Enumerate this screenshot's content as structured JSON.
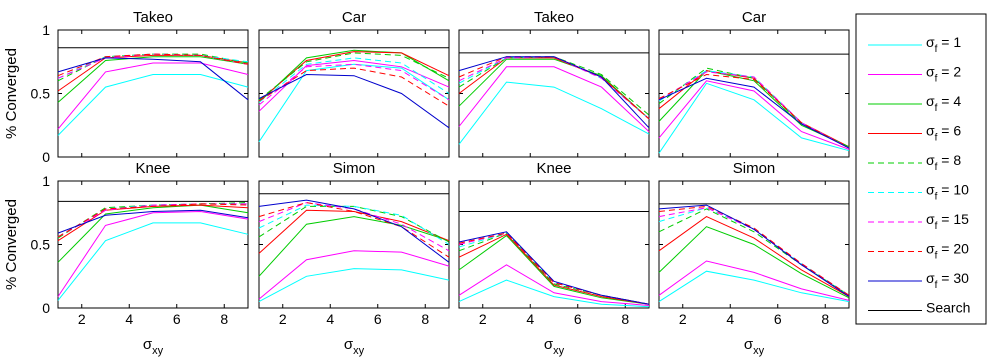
{
  "chart_data": {
    "type": "line",
    "ylabel": "% Converged",
    "xlabel_main": "σ",
    "xlabel_sub": "xy",
    "x": [
      1,
      3,
      5,
      7,
      9
    ],
    "xticks": [
      2,
      4,
      6,
      8
    ],
    "xlim": [
      1,
      9
    ],
    "yticks": [
      "0",
      "0.5",
      "1"
    ],
    "ylim": [
      0,
      1
    ],
    "legend": {
      "placement": "right",
      "entries": [
        {
          "main": "σ",
          "sub": "f",
          "suffix": " = 1",
          "color": "#00ffff",
          "dash": "solid"
        },
        {
          "main": "σ",
          "sub": "f",
          "suffix": " = 2",
          "color": "#ff00ff",
          "dash": "solid"
        },
        {
          "main": "σ",
          "sub": "f",
          "suffix": " = 4",
          "color": "#00cc00",
          "dash": "solid"
        },
        {
          "main": "σ",
          "sub": "f",
          "suffix": " = 6",
          "color": "#ff0000",
          "dash": "solid"
        },
        {
          "main": "σ",
          "sub": "f",
          "suffix": " = 8",
          "color": "#00cc00",
          "dash": "dashed"
        },
        {
          "main": "σ",
          "sub": "f",
          "suffix": " = 10",
          "color": "#00ffff",
          "dash": "dashed"
        },
        {
          "main": "σ",
          "sub": "f",
          "suffix": " = 15",
          "color": "#ff00ff",
          "dash": "dashed"
        },
        {
          "main": "σ",
          "sub": "f",
          "suffix": " = 20",
          "color": "#ff0000",
          "dash": "dashed"
        },
        {
          "main": "σ",
          "sub": "f",
          "suffix": " = 30",
          "color": "#0000cc",
          "dash": "solid"
        },
        {
          "main": "",
          "sub": "",
          "suffix": "Search",
          "color": "#000000",
          "dash": "solid"
        }
      ]
    },
    "panels": [
      {
        "title": "Takeo",
        "search": 0.86,
        "series": [
          [
            0.17,
            0.55,
            0.65,
            0.65,
            0.55
          ],
          [
            0.22,
            0.67,
            0.74,
            0.74,
            0.65
          ],
          [
            0.43,
            0.76,
            0.79,
            0.79,
            0.73
          ],
          [
            0.52,
            0.78,
            0.8,
            0.8,
            0.74
          ],
          [
            0.6,
            0.79,
            0.81,
            0.81,
            0.74
          ],
          [
            0.62,
            0.79,
            0.81,
            0.8,
            0.75
          ],
          [
            0.62,
            0.78,
            0.81,
            0.8,
            0.73
          ],
          [
            0.64,
            0.79,
            0.81,
            0.8,
            0.73
          ],
          [
            0.67,
            0.78,
            0.77,
            0.75,
            0.45
          ]
        ]
      },
      {
        "title": "Car",
        "search": 0.86,
        "series": [
          [
            0.12,
            0.68,
            0.73,
            0.7,
            0.45
          ],
          [
            0.36,
            0.72,
            0.76,
            0.71,
            0.55
          ],
          [
            0.43,
            0.78,
            0.84,
            0.82,
            0.6
          ],
          [
            0.44,
            0.76,
            0.83,
            0.82,
            0.64
          ],
          [
            0.45,
            0.75,
            0.82,
            0.8,
            0.62
          ],
          [
            0.43,
            0.73,
            0.78,
            0.74,
            0.5
          ],
          [
            0.41,
            0.71,
            0.73,
            0.68,
            0.45
          ],
          [
            0.44,
            0.68,
            0.7,
            0.63,
            0.4
          ],
          [
            0.46,
            0.65,
            0.64,
            0.5,
            0.23
          ]
        ]
      },
      {
        "title": "Takeo",
        "search": 0.82,
        "series": [
          [
            0.1,
            0.59,
            0.55,
            0.38,
            0.18
          ],
          [
            0.24,
            0.71,
            0.71,
            0.55,
            0.2
          ],
          [
            0.4,
            0.77,
            0.77,
            0.64,
            0.3
          ],
          [
            0.5,
            0.78,
            0.78,
            0.63,
            0.3
          ],
          [
            0.55,
            0.78,
            0.79,
            0.65,
            0.33
          ],
          [
            0.58,
            0.78,
            0.79,
            0.62,
            0.3
          ],
          [
            0.6,
            0.78,
            0.79,
            0.62,
            0.3
          ],
          [
            0.63,
            0.79,
            0.79,
            0.63,
            0.3
          ],
          [
            0.68,
            0.79,
            0.79,
            0.63,
            0.23
          ]
        ]
      },
      {
        "title": "Car",
        "search": 0.81,
        "series": [
          [
            0.03,
            0.58,
            0.45,
            0.15,
            0.05
          ],
          [
            0.15,
            0.6,
            0.52,
            0.2,
            0.06
          ],
          [
            0.28,
            0.68,
            0.6,
            0.25,
            0.08
          ],
          [
            0.38,
            0.68,
            0.62,
            0.27,
            0.08
          ],
          [
            0.42,
            0.7,
            0.62,
            0.26,
            0.08
          ],
          [
            0.44,
            0.68,
            0.63,
            0.27,
            0.07
          ],
          [
            0.45,
            0.67,
            0.63,
            0.27,
            0.07
          ],
          [
            0.46,
            0.65,
            0.61,
            0.27,
            0.07
          ],
          [
            0.45,
            0.62,
            0.55,
            0.26,
            0.07
          ]
        ]
      },
      {
        "title": "Knee",
        "search": 0.84,
        "series": [
          [
            0.06,
            0.53,
            0.67,
            0.67,
            0.58
          ],
          [
            0.09,
            0.65,
            0.75,
            0.76,
            0.7
          ],
          [
            0.36,
            0.74,
            0.79,
            0.81,
            0.75
          ],
          [
            0.53,
            0.77,
            0.8,
            0.81,
            0.79
          ],
          [
            0.55,
            0.79,
            0.81,
            0.82,
            0.83
          ],
          [
            0.56,
            0.78,
            0.81,
            0.82,
            0.82
          ],
          [
            0.56,
            0.77,
            0.81,
            0.82,
            0.82
          ],
          [
            0.56,
            0.78,
            0.8,
            0.82,
            0.81
          ],
          [
            0.59,
            0.73,
            0.76,
            0.77,
            0.71
          ]
        ]
      },
      {
        "title": "Simon",
        "search": 0.9,
        "series": [
          [
            0.05,
            0.25,
            0.31,
            0.3,
            0.22
          ],
          [
            0.07,
            0.38,
            0.45,
            0.44,
            0.33
          ],
          [
            0.25,
            0.66,
            0.72,
            0.65,
            0.53
          ],
          [
            0.43,
            0.77,
            0.76,
            0.68,
            0.53
          ],
          [
            0.56,
            0.8,
            0.8,
            0.72,
            0.52
          ],
          [
            0.63,
            0.81,
            0.8,
            0.73,
            0.5
          ],
          [
            0.68,
            0.83,
            0.78,
            0.66,
            0.45
          ],
          [
            0.72,
            0.83,
            0.76,
            0.64,
            0.4
          ],
          [
            0.8,
            0.85,
            0.78,
            0.64,
            0.36
          ]
        ]
      },
      {
        "title": "Knee",
        "search": 0.76,
        "series": [
          [
            0.05,
            0.22,
            0.09,
            0.03,
            0.01
          ],
          [
            0.1,
            0.34,
            0.12,
            0.05,
            0.02
          ],
          [
            0.3,
            0.57,
            0.17,
            0.08,
            0.03
          ],
          [
            0.4,
            0.58,
            0.18,
            0.09,
            0.03
          ],
          [
            0.45,
            0.59,
            0.19,
            0.1,
            0.03
          ],
          [
            0.48,
            0.59,
            0.2,
            0.1,
            0.03
          ],
          [
            0.5,
            0.59,
            0.2,
            0.1,
            0.03
          ],
          [
            0.51,
            0.59,
            0.2,
            0.1,
            0.03
          ],
          [
            0.52,
            0.6,
            0.21,
            0.1,
            0.03
          ]
        ]
      },
      {
        "title": "Simon",
        "search": 0.82,
        "series": [
          [
            0.05,
            0.29,
            0.22,
            0.12,
            0.05
          ],
          [
            0.1,
            0.37,
            0.28,
            0.15,
            0.06
          ],
          [
            0.28,
            0.64,
            0.5,
            0.27,
            0.08
          ],
          [
            0.45,
            0.72,
            0.55,
            0.3,
            0.09
          ],
          [
            0.6,
            0.78,
            0.6,
            0.34,
            0.1
          ],
          [
            0.68,
            0.79,
            0.62,
            0.35,
            0.1
          ],
          [
            0.72,
            0.79,
            0.62,
            0.35,
            0.1
          ],
          [
            0.76,
            0.8,
            0.63,
            0.35,
            0.1
          ],
          [
            0.78,
            0.81,
            0.62,
            0.34,
            0.09
          ]
        ]
      }
    ]
  }
}
